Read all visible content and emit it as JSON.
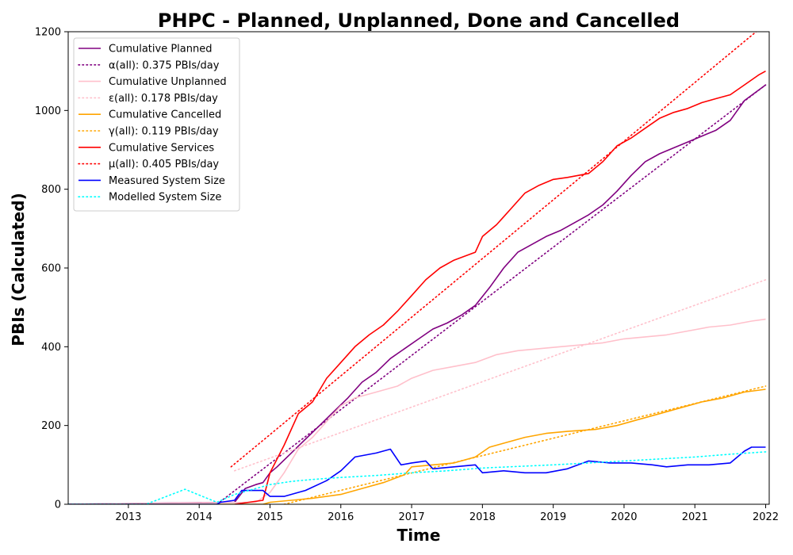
{
  "chart_data": {
    "type": "line",
    "title": "PHPC - Planned, Unplanned, Done  and Cancelled",
    "xlabel": "Time",
    "ylabel": "PBIs (Calculated)",
    "xlim": [
      2012.15,
      2022.05
    ],
    "ylim": [
      0,
      1200
    ],
    "x_ticks": [
      2013,
      2014,
      2015,
      2016,
      2017,
      2018,
      2019,
      2020,
      2021,
      2022
    ],
    "y_ticks": [
      0,
      200,
      400,
      600,
      800,
      1000,
      1200
    ],
    "grid": false,
    "legend_position": "upper-left",
    "series": [
      {
        "name": "Cumulative Planned",
        "color": "#800080",
        "style": "solid",
        "points": [
          [
            2012.15,
            0
          ],
          [
            2014.5,
            5
          ],
          [
            2014.65,
            40
          ],
          [
            2014.8,
            50
          ],
          [
            2014.9,
            55
          ],
          [
            2015.0,
            80
          ],
          [
            2015.1,
            95
          ],
          [
            2015.3,
            130
          ],
          [
            2015.5,
            165
          ],
          [
            2015.7,
            200
          ],
          [
            2015.9,
            235
          ],
          [
            2016.1,
            270
          ],
          [
            2016.3,
            310
          ],
          [
            2016.5,
            335
          ],
          [
            2016.7,
            370
          ],
          [
            2016.9,
            395
          ],
          [
            2017.1,
            420
          ],
          [
            2017.3,
            445
          ],
          [
            2017.5,
            460
          ],
          [
            2017.7,
            480
          ],
          [
            2017.9,
            505
          ],
          [
            2018.1,
            550
          ],
          [
            2018.3,
            600
          ],
          [
            2018.5,
            640
          ],
          [
            2018.7,
            660
          ],
          [
            2018.9,
            680
          ],
          [
            2019.1,
            695
          ],
          [
            2019.3,
            715
          ],
          [
            2019.5,
            735
          ],
          [
            2019.7,
            760
          ],
          [
            2019.9,
            795
          ],
          [
            2020.1,
            835
          ],
          [
            2020.3,
            870
          ],
          [
            2020.5,
            890
          ],
          [
            2020.7,
            905
          ],
          [
            2020.9,
            920
          ],
          [
            2021.1,
            935
          ],
          [
            2021.3,
            950
          ],
          [
            2021.5,
            975
          ],
          [
            2021.6,
            1000
          ],
          [
            2021.7,
            1025
          ],
          [
            2021.85,
            1045
          ],
          [
            2022.0,
            1065
          ]
        ]
      },
      {
        "name": "α(all): 0.375 PBIs/day",
        "color": "#800080",
        "style": "dotted",
        "points": [
          [
            2014.25,
            0
          ],
          [
            2022.0,
            1065
          ]
        ]
      },
      {
        "name": "Cumulative Unplanned",
        "color": "#FFC0CB",
        "style": "solid",
        "points": [
          [
            2012.15,
            0
          ],
          [
            2014.8,
            5
          ],
          [
            2015.0,
            30
          ],
          [
            2015.2,
            80
          ],
          [
            2015.4,
            140
          ],
          [
            2015.6,
            170
          ],
          [
            2015.8,
            210
          ],
          [
            2016.0,
            250
          ],
          [
            2016.2,
            270
          ],
          [
            2016.5,
            285
          ],
          [
            2016.8,
            300
          ],
          [
            2017.0,
            320
          ],
          [
            2017.3,
            340
          ],
          [
            2017.6,
            350
          ],
          [
            2017.9,
            360
          ],
          [
            2018.2,
            380
          ],
          [
            2018.5,
            390
          ],
          [
            2018.8,
            395
          ],
          [
            2019.1,
            400
          ],
          [
            2019.4,
            405
          ],
          [
            2019.7,
            410
          ],
          [
            2020.0,
            420
          ],
          [
            2020.3,
            425
          ],
          [
            2020.6,
            430
          ],
          [
            2020.9,
            440
          ],
          [
            2021.2,
            450
          ],
          [
            2021.5,
            455
          ],
          [
            2021.8,
            465
          ],
          [
            2022.0,
            470
          ]
        ]
      },
      {
        "name": "ε(all): 0.178 PBIs/day",
        "color": "#FFC0CB",
        "style": "dotted",
        "points": [
          [
            2014.5,
            85
          ],
          [
            2022.0,
            570
          ]
        ]
      },
      {
        "name": "Cumulative Cancelled",
        "color": "#FFA500",
        "style": "solid",
        "points": [
          [
            2012.15,
            0
          ],
          [
            2014.9,
            0
          ],
          [
            2015.0,
            5
          ],
          [
            2015.3,
            10
          ],
          [
            2015.6,
            15
          ],
          [
            2016.0,
            25
          ],
          [
            2016.3,
            40
          ],
          [
            2016.6,
            55
          ],
          [
            2016.9,
            75
          ],
          [
            2017.0,
            95
          ],
          [
            2017.3,
            100
          ],
          [
            2017.6,
            105
          ],
          [
            2017.9,
            120
          ],
          [
            2018.1,
            145
          ],
          [
            2018.3,
            155
          ],
          [
            2018.6,
            170
          ],
          [
            2018.9,
            180
          ],
          [
            2019.2,
            185
          ],
          [
            2019.6,
            190
          ],
          [
            2019.9,
            200
          ],
          [
            2020.2,
            215
          ],
          [
            2020.5,
            230
          ],
          [
            2020.8,
            245
          ],
          [
            2021.1,
            260
          ],
          [
            2021.4,
            270
          ],
          [
            2021.7,
            285
          ],
          [
            2022.0,
            292
          ]
        ]
      },
      {
        "name": "γ(all): 0.119 PBIs/day",
        "color": "#FFA500",
        "style": "dotted",
        "points": [
          [
            2015.2,
            0
          ],
          [
            2022.0,
            300
          ]
        ]
      },
      {
        "name": "Cumulative Services",
        "color": "#FF0000",
        "style": "solid",
        "points": [
          [
            2014.5,
            0
          ],
          [
            2014.9,
            10
          ],
          [
            2015.0,
            80
          ],
          [
            2015.2,
            150
          ],
          [
            2015.4,
            230
          ],
          [
            2015.6,
            260
          ],
          [
            2015.8,
            320
          ],
          [
            2016.0,
            360
          ],
          [
            2016.2,
            400
          ],
          [
            2016.4,
            430
          ],
          [
            2016.6,
            455
          ],
          [
            2016.8,
            490
          ],
          [
            2017.0,
            530
          ],
          [
            2017.2,
            570
          ],
          [
            2017.4,
            600
          ],
          [
            2017.6,
            620
          ],
          [
            2017.9,
            640
          ],
          [
            2018.0,
            680
          ],
          [
            2018.2,
            710
          ],
          [
            2018.4,
            750
          ],
          [
            2018.6,
            790
          ],
          [
            2018.8,
            810
          ],
          [
            2019.0,
            825
          ],
          [
            2019.2,
            830
          ],
          [
            2019.5,
            840
          ],
          [
            2019.7,
            870
          ],
          [
            2019.9,
            910
          ],
          [
            2020.1,
            930
          ],
          [
            2020.3,
            955
          ],
          [
            2020.5,
            980
          ],
          [
            2020.7,
            995
          ],
          [
            2020.9,
            1005
          ],
          [
            2021.1,
            1020
          ],
          [
            2021.3,
            1030
          ],
          [
            2021.5,
            1040
          ],
          [
            2021.7,
            1065
          ],
          [
            2021.9,
            1090
          ],
          [
            2022.0,
            1100
          ]
        ]
      },
      {
        "name": "μ(all): 0.405 PBIs/day",
        "color": "#FF0000",
        "style": "dotted",
        "points": [
          [
            2014.45,
            95
          ],
          [
            2022.0,
            1220
          ]
        ]
      },
      {
        "name": "Measured System Size",
        "color": "#0000FF",
        "style": "solid",
        "points": [
          [
            2012.15,
            0
          ],
          [
            2014.25,
            0
          ],
          [
            2014.3,
            5
          ],
          [
            2014.5,
            10
          ],
          [
            2014.6,
            35
          ],
          [
            2014.9,
            35
          ],
          [
            2015.0,
            20
          ],
          [
            2015.2,
            20
          ],
          [
            2015.5,
            35
          ],
          [
            2015.8,
            60
          ],
          [
            2016.0,
            85
          ],
          [
            2016.2,
            120
          ],
          [
            2016.5,
            130
          ],
          [
            2016.7,
            140
          ],
          [
            2016.85,
            100
          ],
          [
            2017.0,
            105
          ],
          [
            2017.2,
            110
          ],
          [
            2017.3,
            90
          ],
          [
            2017.6,
            95
          ],
          [
            2017.9,
            100
          ],
          [
            2018.0,
            80
          ],
          [
            2018.3,
            85
          ],
          [
            2018.6,
            80
          ],
          [
            2018.9,
            80
          ],
          [
            2019.2,
            90
          ],
          [
            2019.5,
            110
          ],
          [
            2019.8,
            105
          ],
          [
            2020.1,
            105
          ],
          [
            2020.4,
            100
          ],
          [
            2020.6,
            95
          ],
          [
            2020.9,
            100
          ],
          [
            2021.2,
            100
          ],
          [
            2021.5,
            105
          ],
          [
            2021.7,
            135
          ],
          [
            2021.8,
            145
          ],
          [
            2022.0,
            145
          ]
        ]
      },
      {
        "name": "Modelled System Size",
        "color": "#00FFFF",
        "style": "dotted",
        "points": [
          [
            2012.15,
            0
          ],
          [
            2013.25,
            0
          ],
          [
            2013.8,
            38
          ],
          [
            2014.25,
            5
          ],
          [
            2014.5,
            25
          ],
          [
            2014.8,
            40
          ],
          [
            2015.0,
            50
          ],
          [
            2015.3,
            58
          ],
          [
            2015.6,
            63
          ],
          [
            2016.0,
            68
          ],
          [
            2016.5,
            73
          ],
          [
            2017.0,
            80
          ],
          [
            2017.5,
            85
          ],
          [
            2018.0,
            92
          ],
          [
            2018.5,
            96
          ],
          [
            2019.0,
            100
          ],
          [
            2019.5,
            105
          ],
          [
            2020.0,
            110
          ],
          [
            2020.5,
            115
          ],
          [
            2021.0,
            120
          ],
          [
            2021.5,
            127
          ],
          [
            2022.0,
            133
          ]
        ]
      }
    ]
  }
}
